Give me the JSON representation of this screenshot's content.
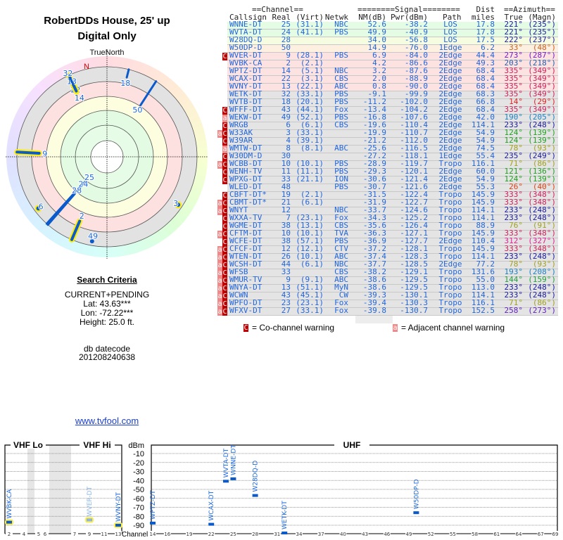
{
  "header": {
    "title": "RobertDDs House, 25' up",
    "subtitle": "Digital Only"
  },
  "polar": {
    "north_caption": "TrueNorth",
    "north_letter": "N",
    "marks": [
      {
        "label": "25",
        "azimuth": 221,
        "nm": 52.6,
        "highlight": false
      },
      {
        "label": "24",
        "azimuth": 221,
        "nm": 49.9,
        "highlight": false
      },
      {
        "label": "28",
        "azimuth": 222,
        "nm": 34.0,
        "highlight": false
      },
      {
        "label": "50",
        "azimuth": 33,
        "nm": 14.9,
        "highlight": false
      },
      {
        "label": "9",
        "azimuth": 273,
        "nm": 6.9,
        "highlight": true
      },
      {
        "label": "2",
        "azimuth": 203,
        "nm": 4.2,
        "highlight": true
      },
      {
        "label": "14",
        "azimuth": 335,
        "nm": 3.2,
        "highlight": false
      },
      {
        "label": "22",
        "azimuth": 335,
        "nm": 2.0,
        "highlight": true
      },
      {
        "label": "13",
        "azimuth": 335,
        "nm": 0.8,
        "highlight": true
      },
      {
        "label": "32",
        "azimuth": 335,
        "nm": -9.1,
        "highlight": false
      },
      {
        "label": "18",
        "azimuth": 14,
        "nm": -11.2,
        "highlight": false
      },
      {
        "label": "49",
        "azimuth": 190,
        "nm": -16.8,
        "highlight": false
      },
      {
        "label": "6",
        "azimuth": 233,
        "nm": -19.6,
        "highlight": true
      },
      {
        "label": "3",
        "azimuth": 124,
        "nm": -19.9,
        "highlight": true
      }
    ]
  },
  "criteria": {
    "heading": "Search Criteria",
    "mode": "CURRENT+PENDING",
    "lat": "Lat: 43.63***",
    "lon": "Lon: -72.22***",
    "height": "Height: 25.0 ft.",
    "datecode_label": "db datecode",
    "datecode": "201208240638",
    "link": "www.tvfool.com"
  },
  "table": {
    "group_headers": {
      "channel": "==Channel==",
      "signal": "========Signal========",
      "dist": "Dist",
      "azimuth": "==Azimuth=="
    },
    "columns": {
      "callsign": "Callsign",
      "real": "Real",
      "virt": "(Virt)",
      "netwk": "Netwk",
      "nm": "NM(dB)",
      "pwr": "Pwr(dBm)",
      "path": "Path",
      "miles": "miles",
      "true": "True",
      "magn": "(Magn)"
    },
    "colors": {
      "co_channel": "#c00000",
      "adjacent": "#f08a8a",
      "text": "#2266dd"
    },
    "rows": [
      {
        "flags": "",
        "call": "WNNE-DT",
        "real": "25",
        "virt": "(31.1)",
        "net": "NBC",
        "nm": "52.6",
        "pwr": "-38.2",
        "path": "LOS",
        "dist": "17.8",
        "true": "221°",
        "magn": "(235°)",
        "band": "green",
        "az_color": "#1a1aa0"
      },
      {
        "flags": "",
        "call": "WVTA-DT",
        "real": "24",
        "virt": "(41.1)",
        "net": "PBS",
        "nm": "49.9",
        "pwr": "-40.9",
        "path": "LOS",
        "dist": "17.8",
        "true": "221°",
        "magn": "(235°)",
        "band": "green",
        "az_color": "#1a1aa0"
      },
      {
        "flags": "",
        "call": "W28DQ-D",
        "real": "28",
        "virt": "",
        "net": "",
        "nm": "34.0",
        "pwr": "-56.8",
        "path": "LOS",
        "dist": "17.5",
        "true": "222°",
        "magn": "(237°)",
        "band": "yellow",
        "az_color": "#1a1aa0"
      },
      {
        "flags": "",
        "call": "W50DP-D",
        "real": "50",
        "virt": "",
        "net": "",
        "nm": "14.9",
        "pwr": "-76.0",
        "path": "1Edge",
        "dist": "6.2",
        "true": "33°",
        "magn": "(48°)",
        "band": "orange",
        "az_color": "#d06020"
      },
      {
        "flags": "C",
        "call": "WVER-DT",
        "real": "9",
        "virt": "(28.1)",
        "net": "PBS",
        "nm": "6.9",
        "pwr": "-84.0",
        "path": "2Edge",
        "dist": "44.4",
        "true": "273°",
        "magn": "(287°)",
        "band": "pink",
        "az_color": "#7020c0"
      },
      {
        "flags": "",
        "call": "WVBK-CA",
        "real": "2",
        "virt": "(2.1)",
        "net": "",
        "nm": "4.2",
        "pwr": "-86.6",
        "path": "2Edge",
        "dist": "49.3",
        "true": "203°",
        "magn": "(218°)",
        "band": "pink",
        "az_color": "#2060b0"
      },
      {
        "flags": "",
        "call": "WPTZ-DT",
        "real": "14",
        "virt": "(5.1)",
        "net": "NBC",
        "nm": "3.2",
        "pwr": "-87.6",
        "path": "2Edge",
        "dist": "68.4",
        "true": "335°",
        "magn": "(349°)",
        "band": "pink",
        "az_color": "#d0205a"
      },
      {
        "flags": "",
        "call": "WCAX-DT",
        "real": "22",
        "virt": "(3.1)",
        "net": "CBS",
        "nm": "2.0",
        "pwr": "-88.9",
        "path": "2Edge",
        "dist": "68.4",
        "true": "335°",
        "magn": "(349°)",
        "band": "pink",
        "az_color": "#d0205a"
      },
      {
        "flags": "",
        "call": "WVNY-DT",
        "real": "13",
        "virt": "(22.1)",
        "net": "ABC",
        "nm": "0.8",
        "pwr": "-90.0",
        "path": "2Edge",
        "dist": "68.4",
        "true": "335°",
        "magn": "(349°)",
        "band": "pink",
        "az_color": "#d0205a"
      },
      {
        "flags": "",
        "call": "WETK-DT",
        "real": "32",
        "virt": "(33.1)",
        "net": "PBS",
        "nm": "-9.1",
        "pwr": "-99.9",
        "path": "2Edge",
        "dist": "68.3",
        "true": "335°",
        "magn": "(349°)",
        "band": "grey",
        "az_color": "#d0205a"
      },
      {
        "flags": "",
        "call": "WVTB-DT",
        "real": "18",
        "virt": "(20.1)",
        "net": "PBS",
        "nm": "-11.2",
        "pwr": "-102.0",
        "path": "2Edge",
        "dist": "66.8",
        "true": "14°",
        "magn": "(29°)",
        "band": "grey",
        "az_color": "#e02020"
      },
      {
        "flags": "C",
        "call": "WFFF-DT",
        "real": "43",
        "virt": "(44.1)",
        "net": "Fox",
        "nm": "-13.4",
        "pwr": "-104.2",
        "path": "2Edge",
        "dist": "68.4",
        "true": "335°",
        "magn": "(349°)",
        "band": "grey",
        "az_color": "#d0205a"
      },
      {
        "flags": "a",
        "call": "WEKW-DT",
        "real": "49",
        "virt": "(52.1)",
        "net": "PBS",
        "nm": "-16.8",
        "pwr": "-107.6",
        "path": "2Edge",
        "dist": "42.0",
        "true": "190°",
        "magn": "(205°)",
        "band": "grey",
        "az_color": "#2080c0"
      },
      {
        "flags": "C",
        "call": "WRGB",
        "real": "6",
        "virt": "(6.1)",
        "net": "CBS",
        "nm": "-19.6",
        "pwr": "-110.4",
        "path": "2Edge",
        "dist": "114.1",
        "true": "233°",
        "magn": "(248°)",
        "band": "grey",
        "az_color": "#1a1aa0"
      },
      {
        "flags": "aC",
        "call": "W33AK",
        "real": "3",
        "virt": "(33.1)",
        "net": "",
        "nm": "-19.9",
        "pwr": "-110.7",
        "path": "2Edge",
        "dist": "54.9",
        "true": "124°",
        "magn": "(139°)",
        "band": "grey",
        "az_color": "#20a020"
      },
      {
        "flags": "C",
        "call": "W39AR",
        "real": "4",
        "virt": "(39.1)",
        "net": "",
        "nm": "-21.2",
        "pwr": "-112.0",
        "path": "2Edge",
        "dist": "54.9",
        "true": "124°",
        "magn": "(139°)",
        "band": "grey",
        "az_color": "#20a020"
      },
      {
        "flags": "a",
        "call": "WMTW-DT",
        "real": "8",
        "virt": "(8.1)",
        "net": "ABC",
        "nm": "-25.6",
        "pwr": "-116.5",
        "path": "2Edge",
        "dist": "74.5",
        "true": "78°",
        "magn": "(93°)",
        "band": "grey",
        "az_color": "#a0a020"
      },
      {
        "flags": "C",
        "call": "W30DM-D",
        "real": "30",
        "virt": "",
        "net": "",
        "nm": "-27.2",
        "pwr": "-118.1",
        "path": "1Edge",
        "dist": "55.4",
        "true": "235°",
        "magn": "(249°)",
        "band": "grey",
        "az_color": "#1a1aa0"
      },
      {
        "flags": "aC",
        "call": "WCBB-DT",
        "real": "10",
        "virt": "(10.1)",
        "net": "PBS",
        "nm": "-28.9",
        "pwr": "-119.7",
        "path": "Tropo",
        "dist": "116.1",
        "true": "71°",
        "magn": "(86°)",
        "band": "grey",
        "az_color": "#a0a020"
      },
      {
        "flags": "C",
        "call": "WENH-TV",
        "real": "11",
        "virt": "(11.1)",
        "net": "PBS",
        "nm": "-29.3",
        "pwr": "-120.1",
        "path": "2Edge",
        "dist": "60.0",
        "true": "121°",
        "magn": "(136°)",
        "band": "grey",
        "az_color": "#20a020"
      },
      {
        "flags": "C",
        "call": "WPXG-DT",
        "real": "33",
        "virt": "(21.1)",
        "net": "ION",
        "nm": "-30.6",
        "pwr": "-121.4",
        "path": "2Edge",
        "dist": "54.9",
        "true": "124°",
        "magn": "(139°)",
        "band": "grey",
        "az_color": "#20a020"
      },
      {
        "flags": "",
        "call": "WLED-DT",
        "real": "48",
        "virt": "",
        "net": "PBS",
        "nm": "-30.7",
        "pwr": "-121.6",
        "path": "2Edge",
        "dist": "55.3",
        "true": "26°",
        "magn": "(40°)",
        "band": "grey",
        "az_color": "#e04010"
      },
      {
        "flags": "C",
        "call": "CBFT-DT*",
        "real": "19",
        "virt": "(2.1)",
        "net": "",
        "nm": "-31.5",
        "pwr": "-122.4",
        "path": "Tropo",
        "dist": "145.9",
        "true": "333°",
        "magn": "(348°)",
        "band": "grey",
        "az_color": "#d0205a"
      },
      {
        "flags": "aC",
        "call": "CBMT-DT*",
        "real": "21",
        "virt": "(6.1)",
        "net": "",
        "nm": "-31.9",
        "pwr": "-122.7",
        "path": "Tropo",
        "dist": "145.9",
        "true": "333°",
        "magn": "(348°)",
        "band": "grey",
        "az_color": "#d0205a"
      },
      {
        "flags": "aC",
        "call": "WNYT",
        "real": "12",
        "virt": "",
        "net": "NBC",
        "nm": "-33.7",
        "pwr": "-124.6",
        "path": "Tropo",
        "dist": "114.1",
        "true": "233°",
        "magn": "(248°)",
        "band": "grey",
        "az_color": "#1a1aa0"
      },
      {
        "flags": "C",
        "call": "WXXA-TV",
        "real": "7",
        "virt": "(23.1)",
        "net": "Fox",
        "nm": "-34.3",
        "pwr": "-125.2",
        "path": "Tropo",
        "dist": "114.1",
        "true": "233°",
        "magn": "(248°)",
        "band": "grey",
        "az_color": "#1a1aa0"
      },
      {
        "flags": "C",
        "call": "WGME-DT",
        "real": "38",
        "virt": "(13.1)",
        "net": "CBS",
        "nm": "-35.6",
        "pwr": "-126.4",
        "path": "Tropo",
        "dist": "88.9",
        "true": "76°",
        "magn": "(91°)",
        "band": "grey",
        "az_color": "#a0a020"
      },
      {
        "flags": "aC",
        "call": "CFTM-DT",
        "real": "10",
        "virt": "(10.1)",
        "net": "TVA",
        "nm": "-36.3",
        "pwr": "-127.1",
        "path": "Tropo",
        "dist": "145.9",
        "true": "333°",
        "magn": "(348°)",
        "band": "grey",
        "az_color": "#d0205a"
      },
      {
        "flags": "C",
        "call": "WCFE-DT",
        "real": "38",
        "virt": "(57.1)",
        "net": "PBS",
        "nm": "-36.9",
        "pwr": "-127.7",
        "path": "2Edge",
        "dist": "110.4",
        "true": "312°",
        "magn": "(327°)",
        "band": "grey",
        "az_color": "#e02090"
      },
      {
        "flags": "aC",
        "call": "CFCF-DT",
        "real": "12",
        "virt": "(12.1)",
        "net": "CTV",
        "nm": "-37.2",
        "pwr": "-128.1",
        "path": "Tropo",
        "dist": "145.9",
        "true": "333°",
        "magn": "(348°)",
        "band": "grey",
        "az_color": "#d0205a"
      },
      {
        "flags": "aC",
        "call": "WTEN-DT",
        "real": "26",
        "virt": "(10.1)",
        "net": "ABC",
        "nm": "-37.4",
        "pwr": "-128.3",
        "path": "Tropo",
        "dist": "114.1",
        "true": "233°",
        "magn": "(248°)",
        "band": "grey",
        "az_color": "#1a1aa0"
      },
      {
        "flags": "aC",
        "call": "WCSH-DT",
        "real": "44",
        "virt": "(6.1)",
        "net": "NBC",
        "nm": "-37.7",
        "pwr": "-128.5",
        "path": "2Edge",
        "dist": "77.2",
        "true": "78°",
        "magn": "(93°)",
        "band": "grey",
        "az_color": "#a0a020"
      },
      {
        "flags": "aC",
        "call": "WFSB",
        "real": "33",
        "virt": "",
        "net": "CBS",
        "nm": "-38.2",
        "pwr": "-129.1",
        "path": "Tropo",
        "dist": "131.6",
        "true": "193°",
        "magn": "(208°)",
        "band": "grey",
        "az_color": "#2080c0"
      },
      {
        "flags": "aC",
        "call": "WMUR-TV",
        "real": "9",
        "virt": "(9.1)",
        "net": "ABC",
        "nm": "-38.6",
        "pwr": "-129.5",
        "path": "Tropo",
        "dist": "55.0",
        "true": "144°",
        "magn": "(159°)",
        "band": "grey",
        "az_color": "#20a040"
      },
      {
        "flags": "aC",
        "call": "WNYA-DT",
        "real": "13",
        "virt": "(51.1)",
        "net": "MyN",
        "nm": "-38.6",
        "pwr": "-129.5",
        "path": "Tropo",
        "dist": "113.0",
        "true": "233°",
        "magn": "(248°)",
        "band": "grey",
        "az_color": "#1a1aa0"
      },
      {
        "flags": "aC",
        "call": "WCWN",
        "real": "43",
        "virt": "(45.1)",
        "net": "CW",
        "nm": "-39.3",
        "pwr": "-130.1",
        "path": "Tropo",
        "dist": "114.1",
        "true": "233°",
        "magn": "(248°)",
        "band": "grey",
        "az_color": "#1a1aa0"
      },
      {
        "flags": "aC",
        "call": "WPFO-DT",
        "real": "23",
        "virt": "(23.1)",
        "net": "Fox",
        "nm": "-39.4",
        "pwr": "-130.3",
        "path": "Tropo",
        "dist": "116.1",
        "true": "71°",
        "magn": "(86°)",
        "band": "grey",
        "az_color": "#a0a020"
      },
      {
        "flags": "aC",
        "call": "WFXV-DT",
        "real": "27",
        "virt": "(33.1)",
        "net": "Fox",
        "nm": "-39.8",
        "pwr": "-130.7",
        "path": "Tropo",
        "dist": "152.5",
        "true": "258°",
        "magn": "(273°)",
        "band": "grey",
        "az_color": "#6020c0"
      }
    ],
    "legend": {
      "co_symbol": "C",
      "co_text": "= Co-channel warning",
      "adj_symbol": "a",
      "adj_text": "= Adjacent channel warning"
    }
  },
  "spectrum": {
    "panels": {
      "vhf_lo": "VHF Lo",
      "vhf_hi": "VHF Hi",
      "uhf": "UHF"
    },
    "unit_label": "dBm",
    "channel_label": "Channel",
    "y_ticks": [
      "-10",
      "-20",
      "-30",
      "-40",
      "-50",
      "-60",
      "-70",
      "-80",
      "-90"
    ],
    "vhf_ticks": [
      "2",
      "4",
      "5",
      "6",
      "7",
      "9",
      "11",
      "13"
    ],
    "uhf_ticks": [
      "14",
      "16",
      "19",
      "22",
      "25",
      "28",
      "31",
      "34",
      "37",
      "40",
      "43",
      "46",
      "49",
      "52",
      "55",
      "58",
      "61",
      "64",
      "67",
      "69"
    ],
    "stations": [
      {
        "call": "WVBK-CA",
        "ch": 2,
        "dbm": -86.6,
        "highlight": true,
        "faded": false
      },
      {
        "call": "WVER-DT",
        "ch": 9,
        "dbm": -84.0,
        "highlight": true,
        "faded": true
      },
      {
        "call": "WVNY-DT",
        "ch": 13,
        "dbm": -90.0,
        "highlight": true,
        "faded": false
      },
      {
        "call": "WPTZ-DT",
        "ch": 14,
        "dbm": -87.6,
        "highlight": false,
        "faded": false
      },
      {
        "call": "WCAX-DT",
        "ch": 22,
        "dbm": -88.9,
        "highlight": false,
        "faded": false
      },
      {
        "call": "WVTA-DT",
        "ch": 24,
        "dbm": -40.9,
        "highlight": false,
        "faded": false
      },
      {
        "call": "WNNE-DT",
        "ch": 25,
        "dbm": -38.2,
        "highlight": false,
        "faded": false
      },
      {
        "call": "W28DQ-D",
        "ch": 28,
        "dbm": -56.8,
        "highlight": false,
        "faded": false
      },
      {
        "call": "WETK-DT",
        "ch": 32,
        "dbm": -99.9,
        "highlight": false,
        "faded": false
      },
      {
        "call": "W50DP-D",
        "ch": 50,
        "dbm": -76.0,
        "highlight": false,
        "faded": false
      }
    ]
  }
}
